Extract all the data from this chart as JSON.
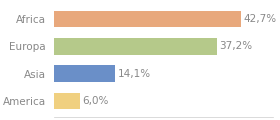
{
  "categories": [
    "America",
    "Asia",
    "Europa",
    "Africa"
  ],
  "values": [
    6.0,
    14.1,
    37.2,
    42.7
  ],
  "labels": [
    "6,0%",
    "14,1%",
    "37,2%",
    "42,7%"
  ],
  "bar_colors": [
    "#f0d080",
    "#6a8fc8",
    "#b5c98a",
    "#e8a87c"
  ],
  "background_color": "#ffffff",
  "text_color": "#888888",
  "xlim": [
    0,
    50
  ],
  "bar_height": 0.6,
  "label_fontsize": 7.5,
  "tick_fontsize": 7.5
}
